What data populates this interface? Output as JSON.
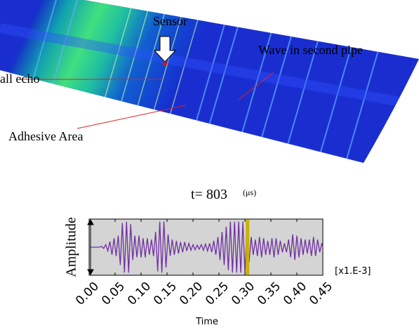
{
  "annotations": {
    "sensor": "Sensor",
    "wall_echo": "all echo",
    "wave": "Wave in second pipe",
    "adhesive": "Adhesive Area"
  },
  "chart_data": {
    "type": "line",
    "title": "t= 803",
    "title_unit": "(μs)",
    "y_label": "Amplitude",
    "x_label": "Time",
    "x_scale_label": "[x1.E-3]",
    "color": "#7030a0",
    "cursor": 0.305,
    "cursor_color": "#c8b400",
    "xlim": [
      0,
      0.45
    ],
    "ylim": [
      -1.1,
      1.1
    ],
    "xticks": [
      {
        "value": 0,
        "label": "0.00"
      },
      {
        "value": 0.05,
        "label": "0.05"
      },
      {
        "value": 0.1,
        "label": "0.10"
      },
      {
        "value": 0.15,
        "label": "0.15"
      },
      {
        "value": 0.2,
        "label": "0.20"
      },
      {
        "value": 0.25,
        "label": "0.25"
      },
      {
        "value": 0.3,
        "label": "0.30"
      },
      {
        "value": 0.35,
        "label": "0.35"
      },
      {
        "value": 0.4,
        "label": "0.40"
      },
      {
        "value": 0.45,
        "label": "0.45"
      }
    ],
    "x": [
      0,
      0.02,
      0.024,
      0.028,
      0.032,
      0.036,
      0.04,
      0.044,
      0.048,
      0.052,
      0.056,
      0.06,
      0.064,
      0.068,
      0.072,
      0.076,
      0.08,
      0.084,
      0.088,
      0.092,
      0.096,
      0.1,
      0.104,
      0.108,
      0.112,
      0.116,
      0.12,
      0.124,
      0.128,
      0.132,
      0.136,
      0.14,
      0.144,
      0.148,
      0.152,
      0.156,
      0.16,
      0.164,
      0.168,
      0.172,
      0.176,
      0.18,
      0.184,
      0.188,
      0.192,
      0.196,
      0.2,
      0.204,
      0.208,
      0.212,
      0.216,
      0.22,
      0.224,
      0.228,
      0.232,
      0.236,
      0.24,
      0.244,
      0.248,
      0.252,
      0.256,
      0.26,
      0.264,
      0.268,
      0.272,
      0.276,
      0.28,
      0.284,
      0.288,
      0.292,
      0.296,
      0.3,
      0.304,
      0.308,
      0.312,
      0.316,
      0.32,
      0.324,
      0.328,
      0.332,
      0.336,
      0.34,
      0.344,
      0.348,
      0.352,
      0.356,
      0.36,
      0.364,
      0.368,
      0.372,
      0.376,
      0.38,
      0.384,
      0.388,
      0.392,
      0.396,
      0.4,
      0.404,
      0.408,
      0.412,
      0.416,
      0.42,
      0.424,
      0.428,
      0.432,
      0.436,
      0.44,
      0.444,
      0.448,
      0.45
    ],
    "values": [
      0,
      0,
      0.03,
      -0.05,
      0.1,
      -0.15,
      0.22,
      -0.3,
      0.35,
      -0.35,
      0.45,
      -0.7,
      0.95,
      -1,
      1,
      -1,
      0.9,
      -0.5,
      0.45,
      -0.4,
      0.45,
      -0.4,
      0.35,
      -0.4,
      0.35,
      -0.3,
      0.3,
      -0.35,
      0.6,
      -0.95,
      1,
      -1,
      1,
      -0.8,
      0.5,
      -0.35,
      0.3,
      -0.3,
      0.25,
      -0.25,
      0.2,
      -0.2,
      0.2,
      -0.15,
      0.15,
      -0.12,
      0.1,
      -0.1,
      0.08,
      -0.08,
      0.1,
      -0.12,
      0.12,
      -0.15,
      0.15,
      -0.2,
      0.25,
      -0.3,
      0.4,
      -0.5,
      0.6,
      -0.7,
      0.8,
      -0.9,
      1,
      -1,
      1,
      -1,
      1,
      -1,
      1,
      -1,
      0.9,
      -0.6,
      0.4,
      -0.3,
      0.3,
      -0.35,
      0.4,
      -0.4,
      0.35,
      -0.3,
      0.25,
      -0.3,
      0.35,
      -0.4,
      0.35,
      -0.3,
      0.25,
      -0.2,
      0.15,
      -0.2,
      0.3,
      -0.4,
      0.5,
      -0.5,
      0.45,
      -0.4,
      0.35,
      -0.3,
      0.3,
      -0.25,
      0.3,
      -0.35,
      0.4,
      -0.35,
      0.3,
      -0.2,
      0.15,
      0
    ]
  }
}
